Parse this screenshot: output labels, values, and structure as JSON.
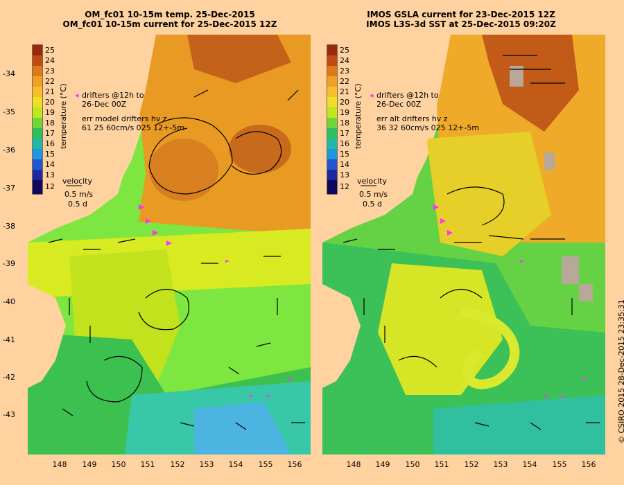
{
  "left_panel": {
    "title_line1": "OM_fc01 10-15m temp. 25-Dec-2015",
    "title_line2": "OM_fc01 10-15m current for 25-Dec-2015 12Z",
    "drifters_line1": "drifters @12h to",
    "drifters_line2": "26-Dec 00Z",
    "err_line1": "err model drifters hv z",
    "err_line2": "61 25 60cm/s 025 12+-5m",
    "velocity_label": "velocity",
    "velocity_scale": "0.5 m/s",
    "velocity_time": "0.5 d"
  },
  "right_panel": {
    "title_line1": "IMOS GSLA current for 23-Dec-2015 12Z",
    "title_line2": "IMOS L3S-3d SST at 25-Dec-2015 09:20Z",
    "drifters_line1": "drifters @12h to",
    "drifters_line2": "26-Dec 00Z",
    "err_line1": "err alt drifters hv z",
    "err_line2": "36 32 60cm/s 025 12+-5m",
    "velocity_label": "velocity",
    "velocity_scale": "0.5 m/s",
    "velocity_time": "0.5 d"
  },
  "colorbar": {
    "label": "temperature (°C)",
    "ticks": [
      "25",
      "24",
      "23",
      "22",
      "21",
      "20",
      "19",
      "18",
      "17",
      "16",
      "15",
      "14",
      "13",
      "12"
    ]
  },
  "x_ticks": [
    "148",
    "149",
    "150",
    "151",
    "152",
    "153",
    "154",
    "155",
    "156"
  ],
  "y_ticks": [
    "-34",
    "-35",
    "-36",
    "-37",
    "-38",
    "-39",
    "-40",
    "-41",
    "-42",
    "-43"
  ],
  "copyright": "© CSIRO 2015   28-Dec-2015 23:35:31"
}
